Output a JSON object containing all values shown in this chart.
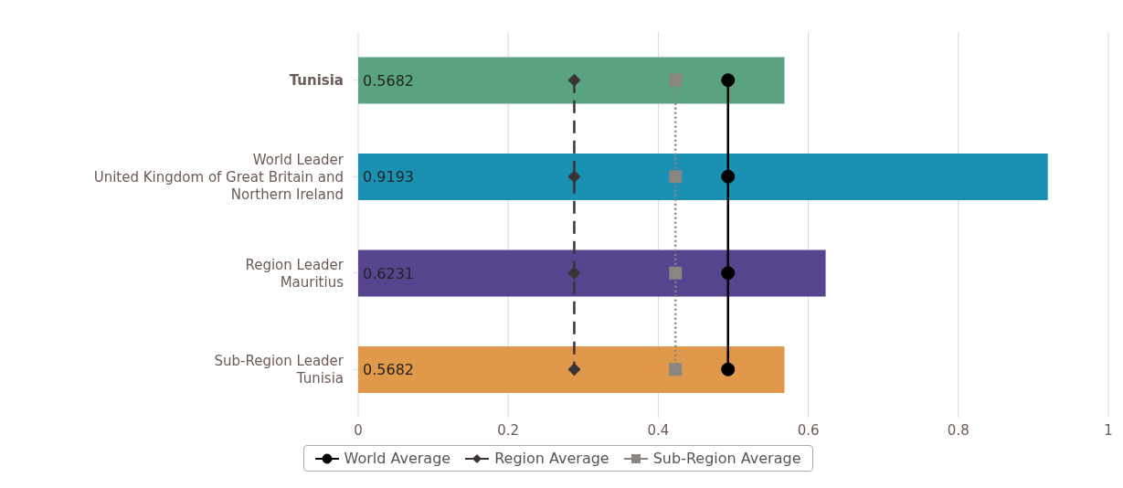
{
  "chart_data": {
    "type": "bar",
    "orientation": "horizontal",
    "categories": [
      "Tunisia",
      "World Leader\nUnited Kingdom of Great Britain and Northern Ireland",
      "Region Leader\nMauritius",
      "Sub-Region Leader\nTunisia"
    ],
    "series": [
      {
        "colors": [
          "#5aa381",
          "#1a91b3",
          "#57448f",
          "#e0984b"
        ],
        "values": [
          0.5682,
          0.9193,
          0.6231,
          0.5682
        ],
        "data_labels": true
      },
      {
        "type": "line",
        "name": "World Average",
        "color": "#000000",
        "values": [
          0.493,
          0.493,
          0.493,
          0.493
        ],
        "marker": "circle",
        "line_style": "solid"
      },
      {
        "type": "line",
        "name": "Region Average",
        "color": "#3a3434",
        "values": [
          0.288,
          0.288,
          0.288,
          0.288
        ],
        "marker": "diamond",
        "line_style": "dashed"
      },
      {
        "type": "line",
        "name": "Sub-Region Average",
        "color": "#8a8580",
        "values": [
          0.423,
          0.423,
          0.423,
          0.423
        ],
        "marker": "square",
        "line_style": "dotted"
      }
    ],
    "xlim": [
      0,
      1
    ],
    "xticks": [
      0,
      0.2,
      0.4,
      0.6,
      0.8,
      1
    ],
    "grid": "x",
    "legend": "bottom"
  }
}
